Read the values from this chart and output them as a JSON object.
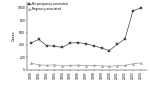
{
  "years": [
    1990,
    1991,
    1992,
    1993,
    1994,
    1995,
    1996,
    1997,
    1998,
    1999,
    2000,
    2001,
    2002,
    2003,
    2004
  ],
  "non_pregnancy": [
    430,
    490,
    390,
    380,
    360,
    430,
    440,
    420,
    390,
    350,
    310,
    410,
    500,
    950,
    1000
  ],
  "pregnancy": [
    105,
    80,
    70,
    80,
    60,
    70,
    75,
    65,
    70,
    60,
    55,
    65,
    70,
    95,
    110
  ],
  "ylim": [
    0,
    1100
  ],
  "yticks": [
    0,
    200,
    400,
    600,
    800,
    1000
  ],
  "xlim": [
    1989.5,
    2004.8
  ],
  "line1_color": "#444444",
  "line2_color": "#999999",
  "marker1": "s",
  "marker2": "^",
  "legend1": "Non-pregnancy-associated",
  "legend2": "Pregnancy-associated",
  "ylabel": "Cases",
  "background": "#ffffff",
  "linewidth": 0.5,
  "markersize": 1.5,
  "tick_fontsize": 2.2,
  "legend_fontsize": 2.0,
  "ylabel_fontsize": 2.5
}
